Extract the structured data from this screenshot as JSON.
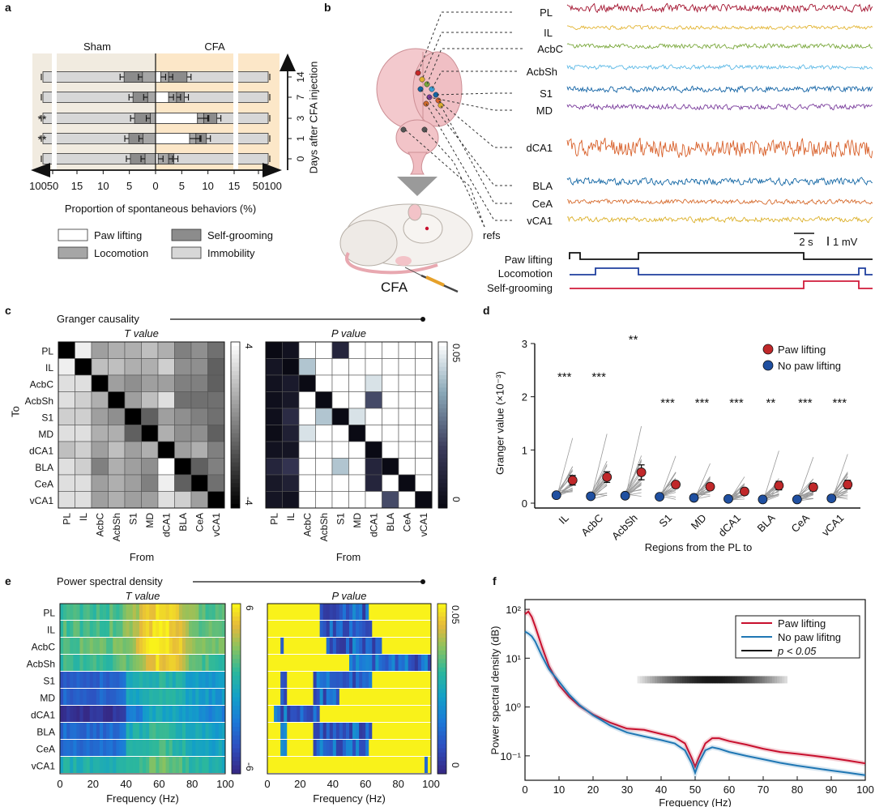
{
  "panels": {
    "a": "a",
    "b": "b",
    "c": "c",
    "d": "d",
    "e": "e",
    "f": "f"
  },
  "colors": {
    "paw": "#c8102e",
    "no_paw": "#1f77b4",
    "sham_bg": "#f1ebe0",
    "cfa_bg": "#fce7c8",
    "bar_self": "#8c8c8c",
    "bar_loco": "#a6a6a6",
    "bar_imm": "#d7d7d7",
    "trace_PL": "#a3122e",
    "trace_IL": "#e3b534",
    "trace_AcbC": "#7aa83c",
    "trace_AcbSh": "#5cb9e6",
    "trace_S1": "#1565a6",
    "trace_MD": "#7a3c9c",
    "trace_dCA1": "#d8602a",
    "trace_BLA": "#1266a4",
    "trace_CeA": "#d66a2c",
    "trace_vCA1": "#dcb02a"
  },
  "chart_data": [
    {
      "type": "bar",
      "id": "a",
      "title_left": "Sham",
      "title_right": "CFA",
      "xlabel": "Proportion of spontaneous behaviors (%)",
      "ylabel": "Days after CFA injection",
      "y_ticks": [
        "14",
        "7",
        "3",
        "1",
        "0"
      ],
      "x_ticks": [
        "100",
        "50",
        "15",
        "10",
        "5",
        "0",
        "5",
        "10",
        "15",
        "50",
        "100"
      ],
      "significance": [
        "",
        "",
        "**",
        "**",
        ""
      ],
      "legend": [
        "Paw lifting",
        "Self-grooming",
        "Locomotion",
        "Immobility"
      ],
      "sham_self_grooming_pct": [
        3.5,
        2.8,
        3.0,
        2.7,
        2.8
      ],
      "sham_locomotion_pct": [
        2.5,
        1.5,
        1.0,
        2.4,
        2.0
      ],
      "cfa_paw_lifting_pct": [
        1.0,
        2.5,
        8.0,
        6.5,
        0.5
      ],
      "cfa_self_grooming_pct": [
        3.5,
        1.5,
        2.5,
        2.0,
        1.0
      ],
      "cfa_locomotion_pct": [
        1.5,
        1.5,
        1.2,
        1.2,
        2.0
      ]
    },
    {
      "type": "line",
      "id": "b",
      "regions": [
        "PL",
        "IL",
        "AcbC",
        "AcbSh",
        "S1",
        "MD",
        "dCA1",
        "BLA",
        "CeA",
        "vCA1"
      ],
      "refs_label": "refs",
      "scale_time": "2 s",
      "scale_voltage": "1 mV",
      "behaviors": [
        "Paw lifting",
        "Locomotion",
        "Self-grooming"
      ],
      "cfa_label": "CFA",
      "amplitude_scale": [
        1.0,
        0.5,
        0.6,
        0.6,
        0.8,
        0.7,
        2.4,
        0.9,
        0.6,
        0.7
      ]
    },
    {
      "type": "heatmap",
      "id": "c",
      "title": "Granger causality",
      "left_title": "T value",
      "right_title": "P value",
      "rows": [
        "PL",
        "IL",
        "AcbC",
        "AcbSh",
        "S1",
        "MD",
        "dCA1",
        "BLA",
        "CeA",
        "vCA1"
      ],
      "cols": [
        "PL",
        "IL",
        "AcbC",
        "AcbSh",
        "S1",
        "MD",
        "dCA1",
        "BLA",
        "CeA",
        "vCA1"
      ],
      "ylabel": "To",
      "xlabel": "From",
      "t_cbar": [
        "4",
        "-4"
      ],
      "p_cbar": [
        "0.05",
        "0"
      ],
      "t_range": [
        -4,
        4
      ],
      "p_range": [
        0,
        0.05
      ],
      "t_values": [
        [
          -4,
          3.5,
          1.0,
          1.5,
          1.5,
          2.0,
          1.5,
          0.0,
          0.5,
          -0.5
        ],
        [
          3.5,
          -4,
          2.0,
          2.0,
          1.5,
          1.5,
          2.5,
          0.5,
          0.5,
          -1.0
        ],
        [
          3.0,
          3.0,
          -4,
          1.0,
          0.5,
          1.0,
          1.0,
          0.0,
          0.0,
          -1.0
        ],
        [
          3.0,
          2.5,
          1.5,
          -4,
          1.0,
          2.0,
          3.0,
          -0.5,
          -0.5,
          -0.5
        ],
        [
          2.5,
          2.5,
          1.0,
          0.5,
          -4,
          -1.0,
          1.0,
          0.5,
          0.0,
          -0.5
        ],
        [
          3.0,
          3.0,
          1.5,
          1.5,
          -1.0,
          -4,
          1.5,
          0.5,
          0.5,
          -1.0
        ],
        [
          2.0,
          2.5,
          1.0,
          2.0,
          1.0,
          1.5,
          -4,
          1.0,
          1.5,
          0.0
        ],
        [
          3.0,
          2.5,
          0.0,
          1.5,
          1.0,
          0.5,
          4.0,
          -4,
          -1.0,
          0.0
        ],
        [
          3.0,
          3.0,
          1.0,
          1.5,
          1.0,
          0.0,
          3.5,
          -1.0,
          -4,
          -0.5
        ],
        [
          3.0,
          3.0,
          1.0,
          1.5,
          1.0,
          1.0,
          3.0,
          2.5,
          1.0,
          -4
        ]
      ],
      "p_values": [
        [
          0.0,
          0.003,
          0.05,
          0.05,
          0.01,
          0.05,
          0.05,
          0.05,
          0.05,
          0.05
        ],
        [
          0.004,
          0.0,
          0.04,
          0.05,
          0.05,
          0.05,
          0.05,
          0.05,
          0.05,
          0.05
        ],
        [
          0.003,
          0.006,
          0.0,
          0.05,
          0.05,
          0.05,
          0.045,
          0.05,
          0.05,
          0.05
        ],
        [
          0.002,
          0.005,
          0.05,
          0.0,
          0.05,
          0.05,
          0.02,
          0.05,
          0.05,
          0.05
        ],
        [
          0.002,
          0.012,
          0.05,
          0.04,
          0.0,
          0.045,
          0.05,
          0.05,
          0.05,
          0.05
        ],
        [
          0.001,
          0.008,
          0.045,
          0.05,
          0.05,
          0.0,
          0.05,
          0.05,
          0.05,
          0.05
        ],
        [
          0.003,
          0.004,
          0.05,
          0.05,
          0.05,
          0.05,
          0.0,
          0.05,
          0.05,
          0.05
        ],
        [
          0.01,
          0.015,
          0.05,
          0.05,
          0.04,
          0.05,
          0.01,
          0.0,
          0.05,
          0.05
        ],
        [
          0.005,
          0.008,
          0.05,
          0.05,
          0.05,
          0.05,
          0.01,
          0.05,
          0.0,
          0.05
        ],
        [
          0.004,
          0.003,
          0.05,
          0.05,
          0.05,
          0.05,
          0.05,
          0.02,
          0.05,
          0.0
        ]
      ]
    },
    {
      "type": "scatter",
      "id": "d",
      "categories": [
        "IL",
        "AcbC",
        "AcbSh",
        "S1",
        "MD",
        "dCA1",
        "BLA",
        "CeA",
        "vCA1"
      ],
      "series": [
        {
          "name": "Paw lifting",
          "values": [
            0.43,
            0.49,
            0.58,
            0.35,
            0.31,
            0.22,
            0.33,
            0.3,
            0.35
          ],
          "err": [
            0.09,
            0.1,
            0.14,
            0.06,
            0.06,
            0.06,
            0.08,
            0.07,
            0.08
          ]
        },
        {
          "name": "No paw lifting",
          "values": [
            0.15,
            0.13,
            0.14,
            0.12,
            0.1,
            0.08,
            0.07,
            0.07,
            0.09
          ],
          "err": [
            0.02,
            0.02,
            0.03,
            0.02,
            0.02,
            0.02,
            0.02,
            0.02,
            0.02
          ]
        }
      ],
      "significance": [
        "***",
        "***",
        "**",
        "***",
        "***",
        "***",
        "**",
        "***",
        "***"
      ],
      "ylabel": "Granger value (×10⁻³)",
      "xlabel": "Regions from the PL to",
      "y_ticks": [
        "3",
        "2",
        "1",
        "0"
      ],
      "ylim": [
        0,
        3
      ]
    },
    {
      "type": "heatmap",
      "id": "e",
      "title": "Power spectral density",
      "left_title": "T value",
      "right_title": "P value",
      "rows": [
        "PL",
        "IL",
        "AcbC",
        "AcbSh",
        "S1",
        "MD",
        "dCA1",
        "BLA",
        "CeA",
        "vCA1"
      ],
      "xlabel": "Frequency (Hz)",
      "x_ticks": [
        "0",
        "20",
        "40",
        "60",
        "80",
        "100"
      ],
      "t_cbar": [
        "6",
        "-6"
      ],
      "p_cbar": [
        "0.05",
        "0"
      ],
      "xlim": [
        0,
        100
      ]
    },
    {
      "type": "line",
      "id": "f",
      "xlabel": "Frequency (Hz)",
      "ylabel": "Power spectral density (dB)",
      "x_ticks": [
        "0",
        "10",
        "20",
        "30",
        "40",
        "50",
        "60",
        "70",
        "80",
        "90",
        "100"
      ],
      "y_ticks": [
        "10²",
        "10¹",
        "10⁰",
        "10⁻¹"
      ],
      "legend": [
        "Paw lifting",
        "No paw lifitng",
        "p < 0.05"
      ],
      "xlim": [
        0,
        100
      ],
      "ylim_log10": [
        -1.5,
        2.2
      ],
      "significant_band_hz": [
        33,
        77
      ],
      "series": [
        {
          "name": "Paw lifting",
          "x": [
            0,
            1,
            2,
            3,
            5,
            7,
            10,
            13,
            16,
            20,
            25,
            30,
            35,
            40,
            44,
            47,
            49,
            50,
            51,
            53,
            55,
            57,
            60,
            65,
            70,
            75,
            80,
            85,
            90,
            95,
            100
          ],
          "y": [
            80,
            90,
            70,
            45,
            17,
            7,
            2.8,
            1.6,
            1.05,
            0.7,
            0.48,
            0.36,
            0.34,
            0.28,
            0.24,
            0.18,
            0.09,
            0.06,
            0.09,
            0.18,
            0.23,
            0.23,
            0.2,
            0.17,
            0.14,
            0.12,
            0.11,
            0.1,
            0.09,
            0.08,
            0.07
          ]
        },
        {
          "name": "No paw lifitng",
          "x": [
            0,
            1,
            2,
            3,
            5,
            7,
            10,
            13,
            16,
            20,
            25,
            30,
            35,
            40,
            44,
            47,
            49,
            50,
            51,
            53,
            55,
            57,
            60,
            65,
            70,
            75,
            80,
            85,
            90,
            95,
            100
          ],
          "y": [
            35,
            32,
            28,
            22,
            11,
            6,
            3.3,
            1.8,
            1.1,
            0.68,
            0.42,
            0.3,
            0.25,
            0.21,
            0.18,
            0.13,
            0.07,
            0.045,
            0.07,
            0.13,
            0.15,
            0.14,
            0.12,
            0.1,
            0.085,
            0.072,
            0.063,
            0.056,
            0.05,
            0.045,
            0.04
          ]
        }
      ]
    }
  ]
}
